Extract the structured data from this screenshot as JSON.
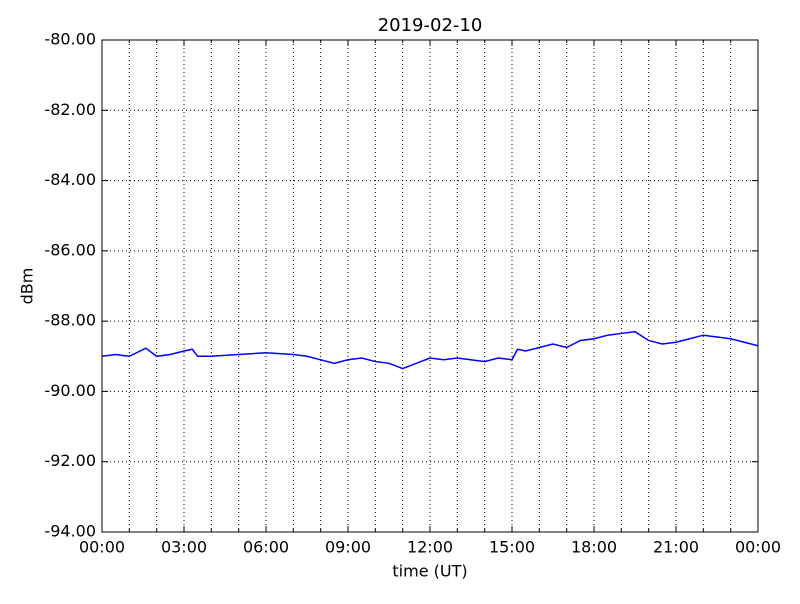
{
  "chart_data": {
    "type": "line",
    "title": "2019-02-10",
    "xlabel": "time (UT)",
    "ylabel": "dBm",
    "x": [
      0,
      0.5,
      1,
      1.6,
      2,
      2.5,
      3,
      3.3,
      3.5,
      4,
      5,
      6,
      7,
      7.5,
      8,
      8.5,
      9,
      9.5,
      10,
      10.5,
      11,
      11.5,
      12,
      12.5,
      13,
      14,
      14.5,
      15,
      15.2,
      15.5,
      16,
      16.5,
      17,
      17.5,
      18,
      18.5,
      19,
      19.5,
      20,
      20.5,
      21,
      21.5,
      22,
      22.5,
      23,
      23.5,
      24
    ],
    "series": [
      {
        "name": "dBm",
        "color": "#0000ff",
        "values": [
          -89.0,
          -88.95,
          -89.0,
          -88.77,
          -89.0,
          -88.95,
          -88.85,
          -88.8,
          -89.0,
          -89.0,
          -88.95,
          -88.9,
          -88.95,
          -89.0,
          -89.1,
          -89.2,
          -89.1,
          -89.05,
          -89.15,
          -89.2,
          -89.35,
          -89.2,
          -89.05,
          -89.1,
          -89.05,
          -89.15,
          -89.05,
          -89.1,
          -88.8,
          -88.85,
          -88.75,
          -88.65,
          -88.75,
          -88.55,
          -88.5,
          -88.4,
          -88.35,
          -88.3,
          -88.55,
          -88.65,
          -88.6,
          -88.5,
          -88.4,
          -88.45,
          -88.5,
          -88.6,
          -88.7
        ]
      }
    ],
    "xlim": [
      0,
      24
    ],
    "xticks": [
      {
        "value": 0,
        "label": "00:00"
      },
      {
        "value": 3,
        "label": "03:00"
      },
      {
        "value": 6,
        "label": "06:00"
      },
      {
        "value": 9,
        "label": "09:00"
      },
      {
        "value": 12,
        "label": "12:00"
      },
      {
        "value": 15,
        "label": "15:00"
      },
      {
        "value": 18,
        "label": "18:00"
      },
      {
        "value": 21,
        "label": "21:00"
      },
      {
        "value": 24,
        "label": "00:00"
      }
    ],
    "xminorticks": [
      1,
      2,
      4,
      5,
      7,
      8,
      10,
      11,
      13,
      14,
      16,
      17,
      19,
      20,
      22,
      23
    ],
    "ylim": [
      -94,
      -80
    ],
    "yticks": [
      {
        "value": -94,
        "label": "-94.00"
      },
      {
        "value": -92,
        "label": "-92.00"
      },
      {
        "value": -90,
        "label": "-90.00"
      },
      {
        "value": -88,
        "label": "-88.00"
      },
      {
        "value": -86,
        "label": "-86.00"
      },
      {
        "value": -84,
        "label": "-84.00"
      },
      {
        "value": -82,
        "label": "-82.00"
      },
      {
        "value": -80,
        "label": "-80.00"
      }
    ],
    "grid": true
  }
}
